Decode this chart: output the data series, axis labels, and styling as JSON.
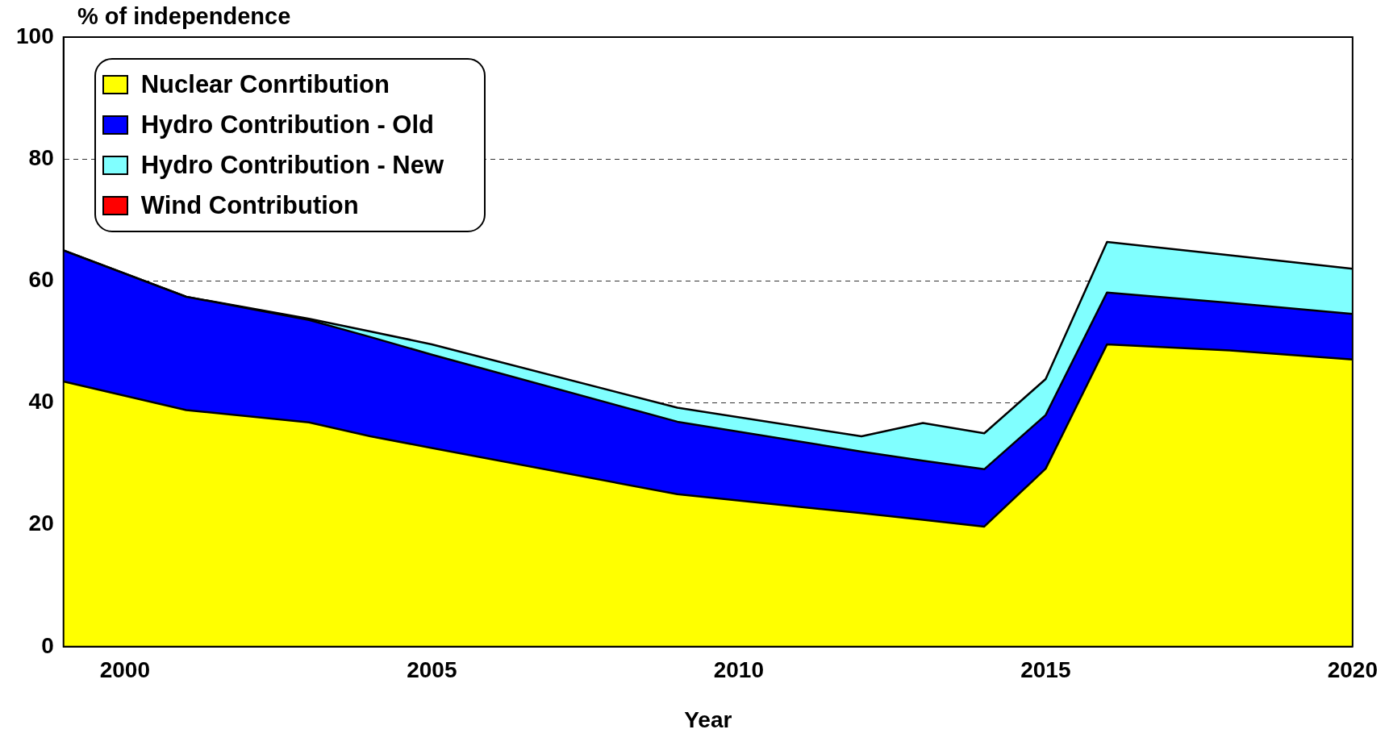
{
  "chart_data": {
    "type": "area",
    "ylabel": "% of independence",
    "xlabel": "Year",
    "stacked": true,
    "x": [
      1999,
      2001,
      2003,
      2004,
      2005,
      2009,
      2012,
      2013,
      2014,
      2015,
      2016,
      2018,
      2020
    ],
    "series": [
      {
        "name": "Nuclear Conrtibution",
        "color": "#ffff00",
        "values": [
          43.5,
          38.8,
          36.8,
          34.5,
          32.6,
          25.0,
          21.9,
          20.8,
          19.7,
          29.2,
          49.6,
          48.6,
          47.1
        ]
      },
      {
        "name": "Hydro Contribution - Old",
        "color": "#0000ff",
        "values": [
          21.5,
          18.6,
          16.8,
          16.3,
          15.3,
          11.9,
          10.1,
          9.7,
          9.4,
          8.8,
          8.5,
          7.8,
          7.5
        ]
      },
      {
        "name": "Hydro Contribution - New",
        "color": "#80ffff",
        "values": [
          0,
          0,
          0.2,
          0.9,
          1.7,
          2.3,
          2.5,
          6.2,
          5.9,
          5.9,
          8.3,
          7.8,
          7.4
        ]
      },
      {
        "name": "Wind Contribution",
        "color": "#ff0000",
        "values": [
          null,
          null,
          null,
          null,
          null,
          null,
          null,
          null,
          null,
          null,
          null,
          null,
          null
        ]
      }
    ],
    "xlim": [
      1999,
      2020
    ],
    "xticks": [
      2000,
      2005,
      2010,
      2015,
      2020
    ],
    "ylim": [
      0,
      100
    ],
    "yticks": [
      0,
      20,
      40,
      60,
      80,
      100
    ],
    "grid": "y",
    "legend": "top left"
  }
}
